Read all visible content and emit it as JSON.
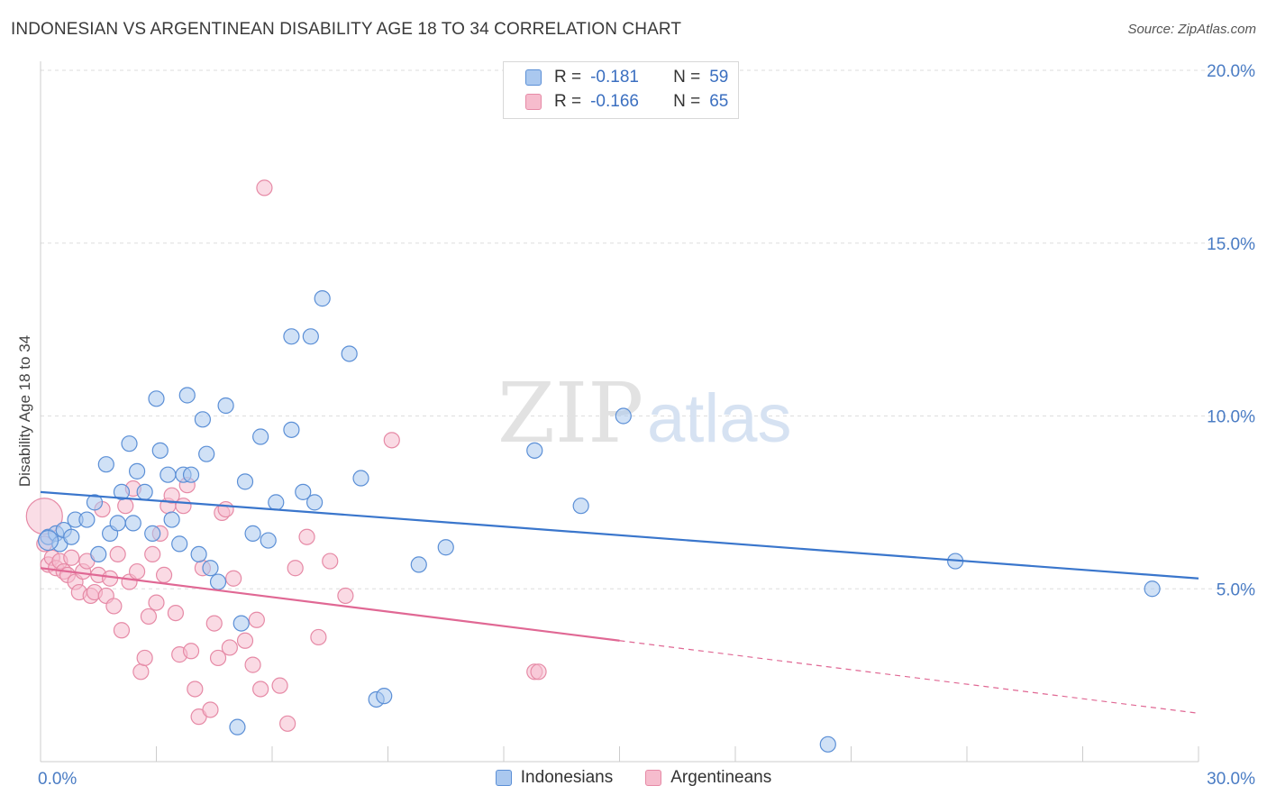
{
  "title": "INDONESIAN VS ARGENTINEAN DISABILITY AGE 18 TO 34 CORRELATION CHART",
  "source": "Source: ZipAtlas.com",
  "watermark": {
    "zip": "ZIP",
    "atlas": "atlas"
  },
  "legend": {
    "rows": [
      {
        "r_label": "R =",
        "r_value": "-0.181",
        "n_label": "N =",
        "n_value": "59"
      },
      {
        "r_label": "R =",
        "r_value": "-0.166",
        "n_label": "N =",
        "n_value": "65"
      }
    ]
  },
  "bottom_legend": {
    "indonesians": "Indonesians",
    "argentineans": "Argentineans"
  },
  "colors": {
    "indonesians_fill": "#aac8ef",
    "indonesians_stroke": "#5b8fd6",
    "indonesians_line": "#3a76cc",
    "argentineans_fill": "#f6bccd",
    "argentineans_stroke": "#e68aa6",
    "argentineans_line": "#e06894",
    "tick": "#4a7cc4",
    "grid": "#dddddd"
  },
  "chart_data": {
    "type": "scatter",
    "ylabel": "Disability Age 18 to 34",
    "xlim": [
      0,
      30
    ],
    "ylim": [
      0,
      20
    ],
    "x_tick_labels": [
      "0.0%",
      "30.0%"
    ],
    "y_ticks": [
      5,
      10,
      15,
      20
    ],
    "y_tick_labels": [
      "5.0%",
      "10.0%",
      "15.0%",
      "20.0%"
    ],
    "grid": "horizontal-dashed",
    "series": [
      {
        "name": "Indonesians",
        "points": [
          [
            0.2,
            6.5
          ],
          [
            0.4,
            6.6
          ],
          [
            0.5,
            6.3
          ],
          [
            0.6,
            6.7
          ],
          [
            0.8,
            6.5
          ],
          [
            0.9,
            7.0
          ],
          [
            1.2,
            7.0
          ],
          [
            1.4,
            7.5
          ],
          [
            1.5,
            6.0
          ],
          [
            1.7,
            8.6
          ],
          [
            1.8,
            6.6
          ],
          [
            2.0,
            6.9
          ],
          [
            2.1,
            7.8
          ],
          [
            2.3,
            9.2
          ],
          [
            2.4,
            6.9
          ],
          [
            2.5,
            8.4
          ],
          [
            2.7,
            7.8
          ],
          [
            2.9,
            6.6
          ],
          [
            3.0,
            10.5
          ],
          [
            3.1,
            9.0
          ],
          [
            3.3,
            8.3
          ],
          [
            3.4,
            7.0
          ],
          [
            3.6,
            6.3
          ],
          [
            3.7,
            8.3
          ],
          [
            3.8,
            10.6
          ],
          [
            3.9,
            8.3
          ],
          [
            4.1,
            6.0
          ],
          [
            4.2,
            9.9
          ],
          [
            4.3,
            8.9
          ],
          [
            4.4,
            5.6
          ],
          [
            4.6,
            5.2
          ],
          [
            4.8,
            10.3
          ],
          [
            5.1,
            1.0
          ],
          [
            5.2,
            4.0
          ],
          [
            5.3,
            8.1
          ],
          [
            5.5,
            6.6
          ],
          [
            5.7,
            9.4
          ],
          [
            5.9,
            6.4
          ],
          [
            6.1,
            7.5
          ],
          [
            6.5,
            12.3
          ],
          [
            6.5,
            9.6
          ],
          [
            6.8,
            7.8
          ],
          [
            7.0,
            12.3
          ],
          [
            7.1,
            7.5
          ],
          [
            7.3,
            13.4
          ],
          [
            8.0,
            11.8
          ],
          [
            8.3,
            8.2
          ],
          [
            8.7,
            1.8
          ],
          [
            8.9,
            1.9
          ],
          [
            9.8,
            5.7
          ],
          [
            10.5,
            6.2
          ],
          [
            12.8,
            9.0
          ],
          [
            14.0,
            7.4
          ],
          [
            15.1,
            10.0
          ],
          [
            20.4,
            0.5
          ],
          [
            23.7,
            5.8
          ],
          [
            28.8,
            5.0
          ]
        ],
        "trend": {
          "x": [
            0,
            30
          ],
          "y": [
            7.8,
            5.3
          ]
        }
      },
      {
        "name": "Argentineans",
        "points": [
          [
            0.1,
            6.3
          ],
          [
            0.2,
            5.7
          ],
          [
            0.3,
            5.9
          ],
          [
            0.4,
            5.6
          ],
          [
            0.5,
            5.8
          ],
          [
            0.6,
            5.5
          ],
          [
            0.7,
            5.4
          ],
          [
            0.8,
            5.9
          ],
          [
            0.9,
            5.2
          ],
          [
            1.0,
            4.9
          ],
          [
            1.1,
            5.5
          ],
          [
            1.2,
            5.8
          ],
          [
            1.3,
            4.8
          ],
          [
            1.4,
            4.9
          ],
          [
            1.5,
            5.4
          ],
          [
            1.6,
            7.3
          ],
          [
            1.7,
            4.8
          ],
          [
            1.8,
            5.3
          ],
          [
            1.9,
            4.5
          ],
          [
            2.0,
            6.0
          ],
          [
            2.1,
            3.8
          ],
          [
            2.2,
            7.4
          ],
          [
            2.3,
            5.2
          ],
          [
            2.4,
            7.9
          ],
          [
            2.5,
            5.5
          ],
          [
            2.6,
            2.6
          ],
          [
            2.7,
            3.0
          ],
          [
            2.8,
            4.2
          ],
          [
            2.9,
            6.0
          ],
          [
            3.0,
            4.6
          ],
          [
            3.1,
            6.6
          ],
          [
            3.2,
            5.4
          ],
          [
            3.3,
            7.4
          ],
          [
            3.4,
            7.7
          ],
          [
            3.5,
            4.3
          ],
          [
            3.6,
            3.1
          ],
          [
            3.7,
            7.4
          ],
          [
            3.8,
            8.0
          ],
          [
            3.9,
            3.2
          ],
          [
            4.0,
            2.1
          ],
          [
            4.1,
            1.3
          ],
          [
            4.2,
            5.6
          ],
          [
            4.4,
            1.5
          ],
          [
            4.5,
            4.0
          ],
          [
            4.6,
            3.0
          ],
          [
            4.7,
            7.2
          ],
          [
            4.8,
            7.3
          ],
          [
            4.9,
            3.3
          ],
          [
            5.0,
            5.3
          ],
          [
            5.3,
            3.5
          ],
          [
            5.5,
            2.8
          ],
          [
            5.6,
            4.1
          ],
          [
            5.7,
            2.1
          ],
          [
            5.8,
            16.6
          ],
          [
            6.2,
            2.2
          ],
          [
            6.4,
            1.1
          ],
          [
            6.6,
            5.6
          ],
          [
            6.9,
            6.5
          ],
          [
            7.2,
            3.6
          ],
          [
            7.5,
            5.8
          ],
          [
            7.9,
            4.8
          ],
          [
            9.1,
            9.3
          ],
          [
            12.8,
            2.6
          ],
          [
            12.9,
            2.6
          ]
        ],
        "trend": {
          "x": [
            0,
            15
          ],
          "y": [
            5.6,
            3.5
          ]
        },
        "trend_extension": {
          "x": [
            15,
            30
          ],
          "y": [
            3.5,
            1.4
          ]
        }
      }
    ]
  }
}
